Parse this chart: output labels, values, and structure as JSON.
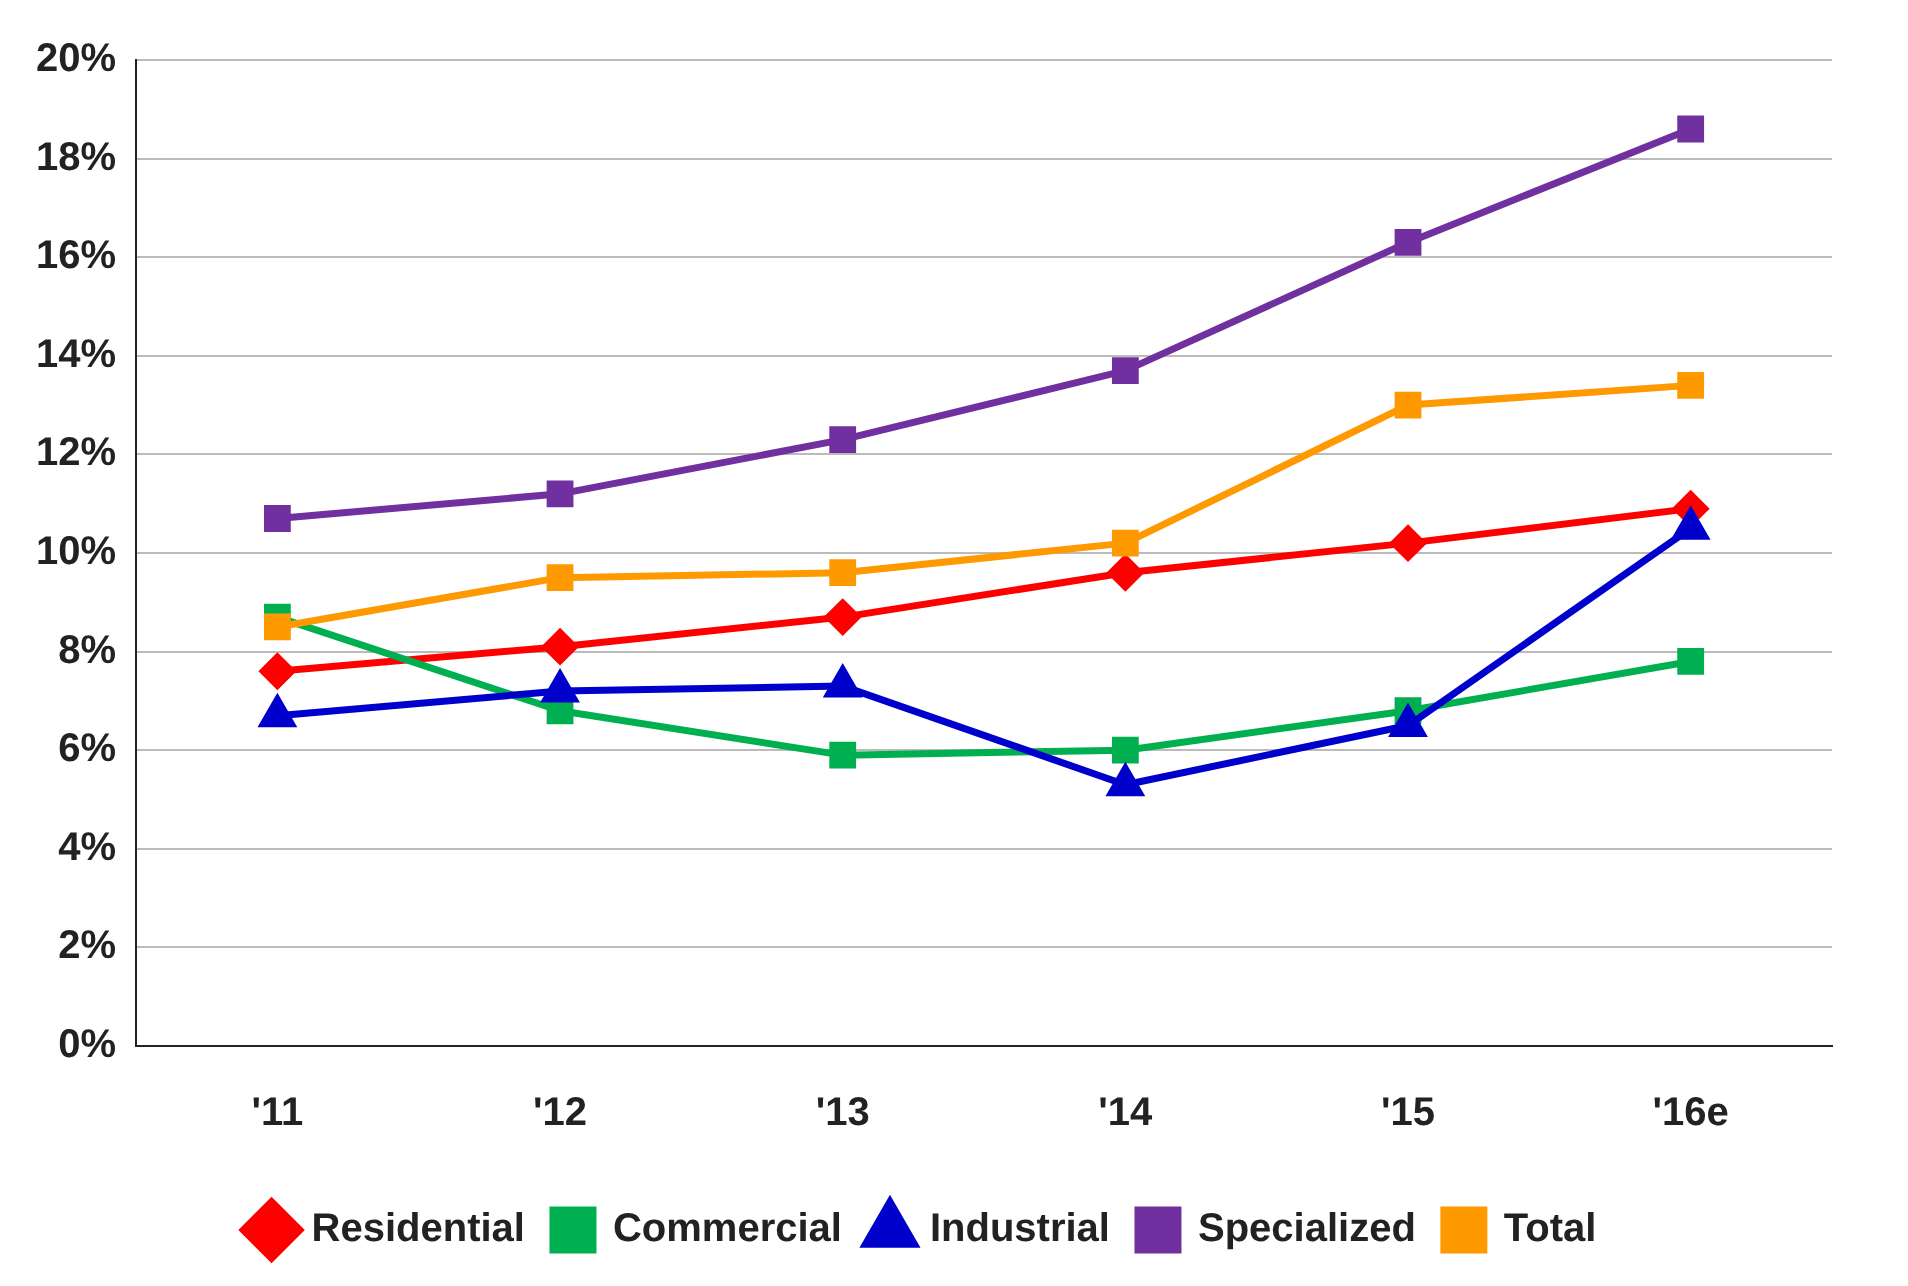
{
  "chart_data": {
    "type": "line",
    "categories": [
      "'11",
      "'12",
      "'13",
      "'14",
      "'15",
      "'16e"
    ],
    "series": [
      {
        "name": "Residential",
        "color": "#ff0000",
        "marker": "diamond",
        "values": [
          7.6,
          8.1,
          8.7,
          9.6,
          10.2,
          10.9
        ]
      },
      {
        "name": "Commercial",
        "color": "#00b050",
        "marker": "square",
        "values": [
          8.7,
          6.8,
          5.9,
          6.0,
          6.8,
          7.8
        ]
      },
      {
        "name": "Industrial",
        "color": "#0000cc",
        "marker": "triangle",
        "values": [
          6.7,
          7.2,
          7.3,
          5.3,
          6.5,
          10.5
        ]
      },
      {
        "name": "Specialized",
        "color": "#7030a0",
        "marker": "square",
        "values": [
          10.7,
          11.2,
          12.3,
          13.7,
          16.3,
          18.6
        ]
      },
      {
        "name": "Total",
        "color": "#ff9900",
        "marker": "square",
        "values": [
          8.5,
          9.5,
          9.6,
          10.2,
          13.0,
          13.4
        ]
      }
    ],
    "ylim": [
      0,
      20
    ],
    "yticks": [
      {
        "value": 0,
        "label": "0%"
      },
      {
        "value": 2,
        "label": "2%"
      },
      {
        "value": 4,
        "label": "4%"
      },
      {
        "value": 6,
        "label": "6%"
      },
      {
        "value": 8,
        "label": "8%"
      },
      {
        "value": 10,
        "label": "10%"
      },
      {
        "value": 12,
        "label": "12%"
      },
      {
        "value": 14,
        "label": "14%"
      },
      {
        "value": 16,
        "label": "16%"
      },
      {
        "value": 18,
        "label": "18%"
      },
      {
        "value": 20,
        "label": "20%"
      }
    ],
    "grid": "y",
    "legend": "bottom",
    "line_style": "solid"
  }
}
